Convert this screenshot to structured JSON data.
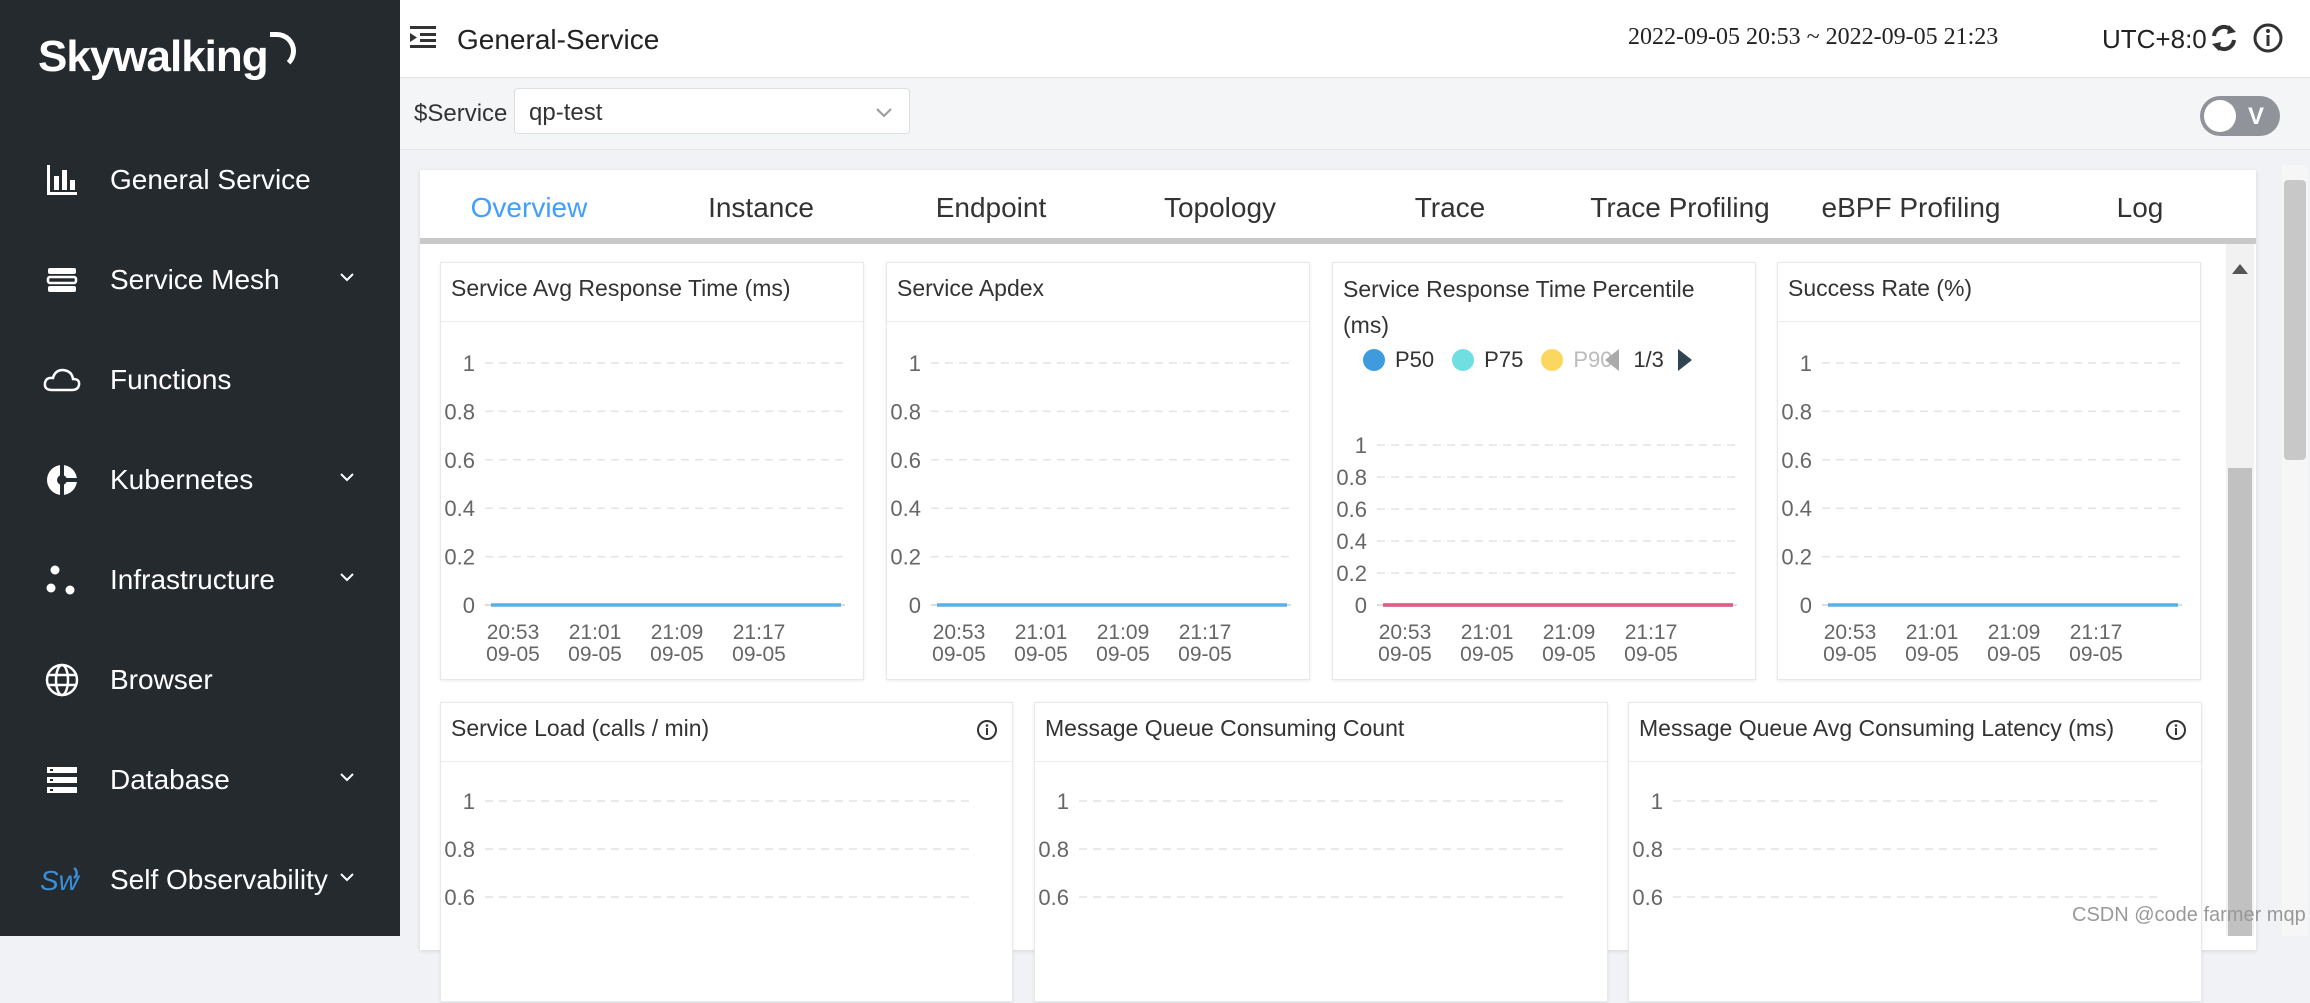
{
  "sidebar": {
    "logo": "Skywalking",
    "items": [
      {
        "label": "General Service",
        "icon": "bar-chart-icon",
        "has_submenu": false
      },
      {
        "label": "Service Mesh",
        "icon": "layers-icon",
        "has_submenu": true
      },
      {
        "label": "Functions",
        "icon": "cloud-icon",
        "has_submenu": false
      },
      {
        "label": "Kubernetes",
        "icon": "kubernetes-icon",
        "has_submenu": true
      },
      {
        "label": "Infrastructure",
        "icon": "nodes-icon",
        "has_submenu": true
      },
      {
        "label": "Browser",
        "icon": "globe-icon",
        "has_submenu": false
      },
      {
        "label": "Database",
        "icon": "database-icon",
        "has_submenu": true
      },
      {
        "label": "Self Observability",
        "icon": "sw-icon",
        "has_submenu": true
      }
    ]
  },
  "header": {
    "title": "General-Service",
    "time_range": "2022-09-05 20:53 ~ 2022-09-05 21:23",
    "timezone": "UTC+8:0"
  },
  "variables": {
    "label": "$Service",
    "service_value": "qp-test",
    "toggle_label": "V"
  },
  "tabs": [
    "Overview",
    "Instance",
    "Endpoint",
    "Topology",
    "Trace",
    "Trace Profiling",
    "eBPF Profiling",
    "Log"
  ],
  "active_tab": "Overview",
  "colors": {
    "accent": "#409eff",
    "line_blue": "#5bb1e6",
    "line_pink": "#e05c8c",
    "p50": "#3d9bde",
    "p75": "#6fdfe2",
    "p90": "#fbd760"
  },
  "pager": "1/3",
  "watermark": "CSDN @code farmer mqp",
  "chart_data": [
    {
      "type": "line",
      "title": "Service Avg Response Time (ms)",
      "x": [
        "20:53\n09-05",
        "21:01\n09-05",
        "21:09\n09-05",
        "21:17\n09-05"
      ],
      "yticks": [
        "0",
        "0.2",
        "0.4",
        "0.6",
        "0.8",
        "1"
      ],
      "ylim": [
        0,
        1
      ],
      "series": [
        {
          "values": [
            0,
            0,
            0,
            0
          ]
        }
      ]
    },
    {
      "type": "line",
      "title": "Service Apdex",
      "x": [
        "20:53\n09-05",
        "21:01\n09-05",
        "21:09\n09-05",
        "21:17\n09-05"
      ],
      "yticks": [
        "0",
        "0.2",
        "0.4",
        "0.6",
        "0.8",
        "1"
      ],
      "ylim": [
        0,
        1
      ],
      "series": [
        {
          "values": [
            0,
            0,
            0,
            0
          ]
        }
      ]
    },
    {
      "type": "line",
      "title": "Service Response Time Percentile (ms)",
      "x": [
        "20:53\n09-05",
        "21:01\n09-05",
        "21:09\n09-05",
        "21:17\n09-05"
      ],
      "yticks": [
        "0",
        "0.2",
        "0.4",
        "0.6",
        "0.8",
        "1"
      ],
      "ylim": [
        0,
        1
      ],
      "legend": [
        "P50",
        "P75",
        "P90"
      ],
      "series": [
        {
          "name": "P50",
          "values": [
            0,
            0,
            0,
            0
          ]
        },
        {
          "name": "P75",
          "values": [
            0,
            0,
            0,
            0
          ]
        },
        {
          "name": "P90",
          "values": [
            0,
            0,
            0,
            0
          ]
        }
      ]
    },
    {
      "type": "line",
      "title": "Success Rate (%)",
      "x": [
        "20:53\n09-05",
        "21:01\n09-05",
        "21:09\n09-05",
        "21:17\n09-05"
      ],
      "yticks": [
        "0",
        "0.2",
        "0.4",
        "0.6",
        "0.8",
        "1"
      ],
      "ylim": [
        0,
        1
      ],
      "series": [
        {
          "values": [
            0,
            0,
            0,
            0
          ]
        }
      ]
    },
    {
      "type": "line",
      "title": "Service Load (calls / min)",
      "yticks": [
        "0.6",
        "0.8",
        "1"
      ],
      "ylim": [
        0,
        1
      ],
      "series": []
    },
    {
      "type": "line",
      "title": "Message Queue Consuming Count",
      "yticks": [
        "0.6",
        "0.8",
        "1"
      ],
      "ylim": [
        0,
        1
      ],
      "series": []
    },
    {
      "type": "line",
      "title": "Message Queue Avg Consuming Latency (ms)",
      "yticks": [
        "0.6",
        "0.8",
        "1"
      ],
      "ylim": [
        0,
        1
      ],
      "series": []
    }
  ]
}
